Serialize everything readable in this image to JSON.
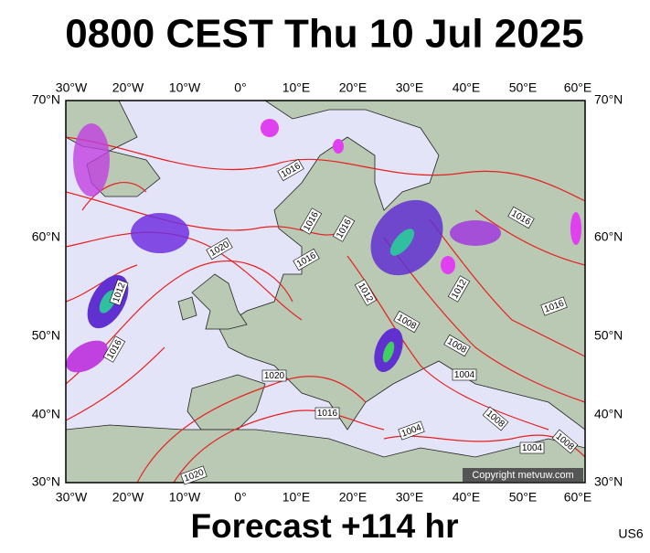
{
  "header": {
    "title": "0800 CEST Thu 10 Jul 2025"
  },
  "map": {
    "lon_labels": [
      "30°W",
      "20°W",
      "10°W",
      "0°",
      "10°E",
      "20°E",
      "30°E",
      "40°E",
      "50°E",
      "60°E"
    ],
    "lat_labels": [
      "70°N",
      "60°N",
      "50°N",
      "40°N",
      "30°N"
    ],
    "isobar_labels": [
      "1016",
      "1016",
      "1016",
      "1016",
      "1020",
      "1012",
      "1016",
      "1012",
      "1008",
      "1012",
      "1016",
      "1016",
      "1008",
      "1004",
      "1020",
      "1016",
      "1004",
      "1008",
      "1004",
      "1008",
      "1020"
    ],
    "copyright": "Copyright metvuw.com"
  },
  "footer": {
    "forecast": "Forecast +114 hr",
    "code": "US6"
  }
}
